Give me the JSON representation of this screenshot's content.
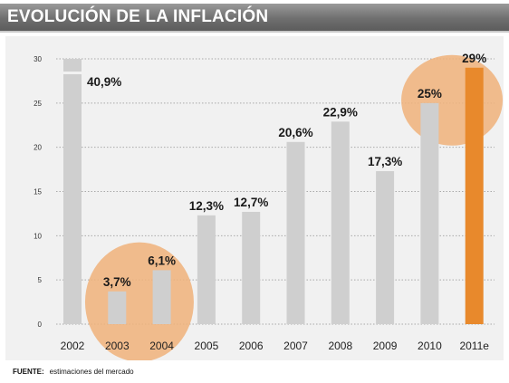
{
  "header": {
    "title": "EVOLUCIÓN DE LA INFLACIÓN"
  },
  "footer": {
    "label": "FUENTE:",
    "text": "estimaciones del mercado"
  },
  "colors": {
    "bar": "#cfcfcf",
    "bar_highlight": "#e8892c",
    "circle": "#f0b27a",
    "grid": "#a9a9a9",
    "panel": "#f1f1f1"
  },
  "chart_data": {
    "type": "bar",
    "categories": [
      "2002",
      "2003",
      "2004",
      "2005",
      "2006",
      "2007",
      "2008",
      "2009",
      "2010",
      "2011e"
    ],
    "values": [
      40.9,
      3.7,
      6.1,
      12.3,
      12.7,
      20.6,
      22.9,
      17.3,
      25,
      29
    ],
    "data_labels": [
      "40,9%",
      "3,7%",
      "6,1%",
      "12,3%",
      "12,7%",
      "20,6%",
      "22,9%",
      "17,3%",
      "25%",
      "29%"
    ],
    "highlight_category": "2011e",
    "highlighted_groups": [
      [
        "2003",
        "2004"
      ],
      [
        "2010",
        "2011e"
      ]
    ],
    "axis_break_category": "2002",
    "ylim": [
      0,
      30
    ],
    "yticks": [
      0,
      5,
      10,
      15,
      20,
      25,
      30
    ],
    "title": "EVOLUCIÓN DE LA INFLACIÓN",
    "xlabel": "",
    "ylabel": "",
    "grid": true,
    "legend": "none"
  }
}
